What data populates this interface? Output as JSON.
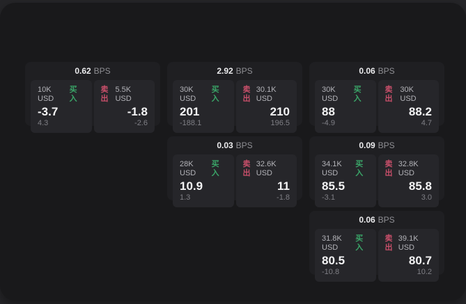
{
  "page": {
    "bps_suffix": "BPS",
    "buy_label": "买入",
    "sell_label": "卖出"
  },
  "colors": {
    "buy_green": "#3aa568",
    "sell_red": "#c84f6a",
    "window_bg": "#19191b",
    "card_bg": "#1f1f22",
    "panel_bg": "#26262a"
  },
  "cards": [
    {
      "bps": "0.62",
      "col": 1,
      "row": 1,
      "buy": {
        "amount": "10K USD",
        "value": "-3.7",
        "sub": "4.3"
      },
      "sell": {
        "amount": "5.5K USD",
        "value": "-1.8",
        "sub": "-2.6"
      }
    },
    {
      "bps": "2.92",
      "col": 2,
      "row": 1,
      "buy": {
        "amount": "30K USD",
        "value": "201",
        "sub": "-188.1"
      },
      "sell": {
        "amount": "30.1K USD",
        "value": "210",
        "sub": "196.5"
      }
    },
    {
      "bps": "0.06",
      "col": 3,
      "row": 1,
      "buy": {
        "amount": "30K USD",
        "value": "88",
        "sub": "-4.9"
      },
      "sell": {
        "amount": "30K USD",
        "value": "88.2",
        "sub": "4.7"
      }
    },
    {
      "bps": "0.03",
      "col": 2,
      "row": 2,
      "buy": {
        "amount": "28K USD",
        "value": "10.9",
        "sub": "1.3"
      },
      "sell": {
        "amount": "32.6K USD",
        "value": "11",
        "sub": "-1.8"
      }
    },
    {
      "bps": "0.09",
      "col": 3,
      "row": 2,
      "buy": {
        "amount": "34.1K USD",
        "value": "85.5",
        "sub": "-3.1"
      },
      "sell": {
        "amount": "32.8K USD",
        "value": "85.8",
        "sub": "3.0"
      }
    },
    {
      "bps": "0.06",
      "col": 3,
      "row": 3,
      "buy": {
        "amount": "31.8K USD",
        "value": "80.5",
        "sub": "-10.8"
      },
      "sell": {
        "amount": "39.1K USD",
        "value": "80.7",
        "sub": "10.2"
      }
    }
  ]
}
